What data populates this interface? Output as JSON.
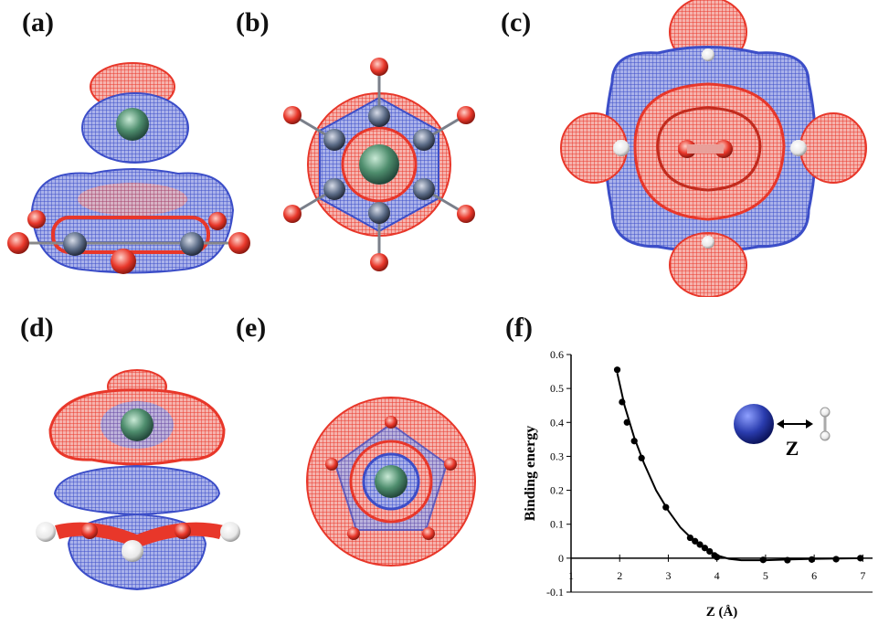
{
  "panels": {
    "a": "(a)",
    "b": "(b)",
    "c": "(c)",
    "d": "(d)",
    "e": "(e)",
    "f": "(f)"
  },
  "colors": {
    "negative_lobe": "#e8372a",
    "positive_lobe": "#3c4ec8",
    "metal_atom": "#4f8e6e",
    "carbon_atom": "#5b6b86",
    "hydrogen_atom": "#f2f2f2",
    "inset_sphere": "#2a3cae"
  },
  "chart_data": {
    "type": "scatter",
    "xlabel": "Z (Å)",
    "ylabel": "Binding energy",
    "xlim": [
      1,
      7.2
    ],
    "ylim": [
      -0.1,
      0.6
    ],
    "x_ticks": [
      "1",
      "2",
      "3",
      "4",
      "5",
      "6",
      "7"
    ],
    "y_ticks": [
      "-0.1",
      "0",
      "0.1",
      "0.2",
      "0.3",
      "0.4",
      "0.5",
      "0.6"
    ],
    "points": [
      [
        1.95,
        0.555
      ],
      [
        2.05,
        0.46
      ],
      [
        2.15,
        0.4
      ],
      [
        2.3,
        0.345
      ],
      [
        2.45,
        0.295
      ],
      [
        2.95,
        0.15
      ],
      [
        3.45,
        0.06
      ],
      [
        3.55,
        0.05
      ],
      [
        3.65,
        0.04
      ],
      [
        3.75,
        0.03
      ],
      [
        3.85,
        0.02
      ],
      [
        3.95,
        0.008
      ],
      [
        4.0,
        0.003
      ],
      [
        4.95,
        -0.005
      ],
      [
        5.45,
        -0.006
      ],
      [
        5.95,
        -0.004
      ],
      [
        6.45,
        -0.003
      ],
      [
        6.95,
        0.0
      ]
    ],
    "fit_curve": [
      [
        1.95,
        0.545
      ],
      [
        2.1,
        0.45
      ],
      [
        2.3,
        0.355
      ],
      [
        2.5,
        0.28
      ],
      [
        2.75,
        0.2
      ],
      [
        3.0,
        0.14
      ],
      [
        3.25,
        0.09
      ],
      [
        3.5,
        0.055
      ],
      [
        3.75,
        0.028
      ],
      [
        4.0,
        0.008
      ],
      [
        4.25,
        -0.002
      ],
      [
        4.5,
        -0.006
      ],
      [
        5.0,
        -0.006
      ],
      [
        5.5,
        -0.004
      ],
      [
        6.0,
        -0.002
      ],
      [
        6.5,
        -0.001
      ],
      [
        7.0,
        0.0
      ]
    ],
    "inset_label": "Z",
    "grid": false
  }
}
